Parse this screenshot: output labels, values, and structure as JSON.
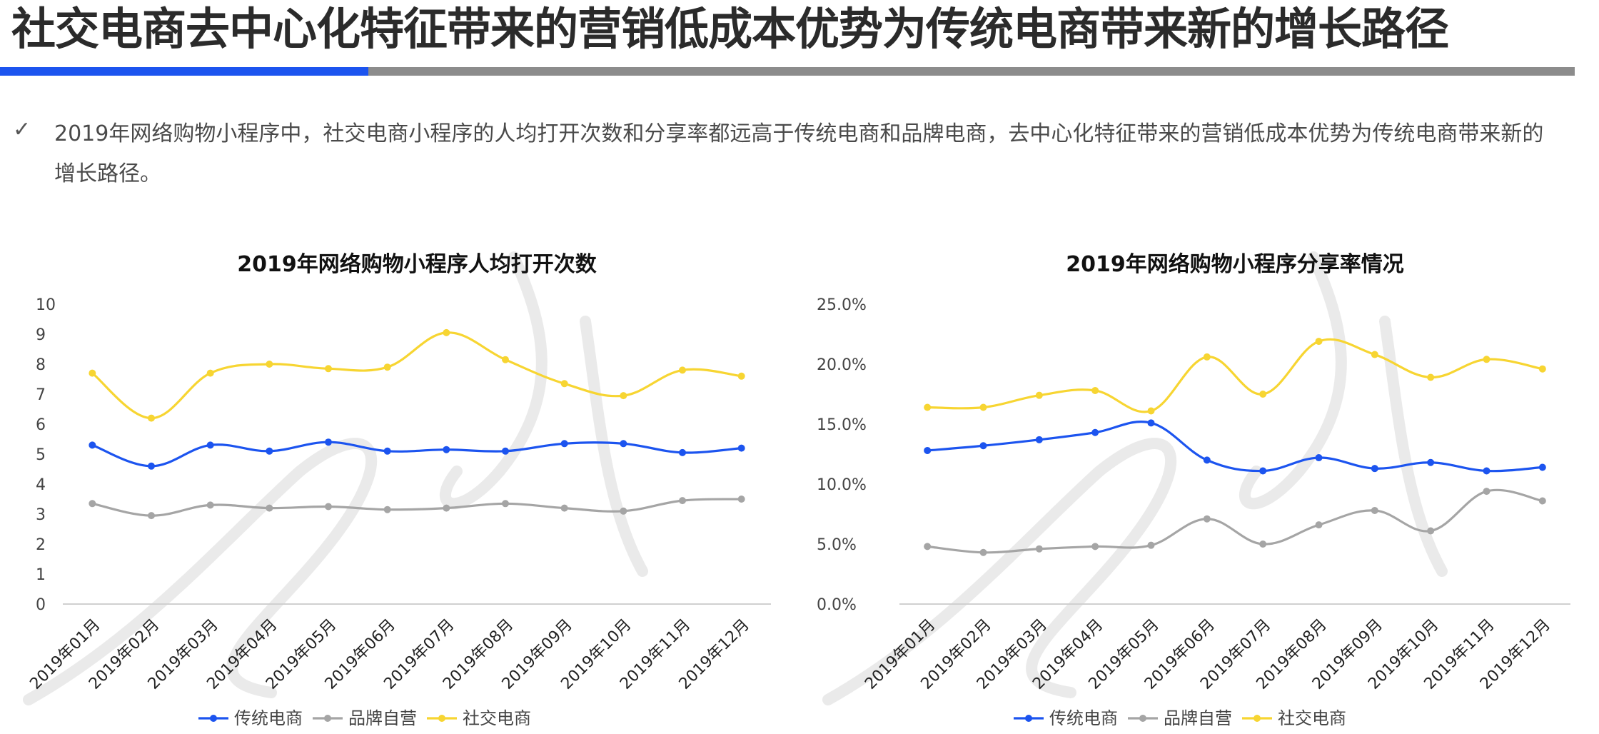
{
  "page": {
    "title": "社交电商去中心化特征带来的营销低成本优势为传统电商带来新的增长路径",
    "bullet": "✓",
    "summary": "2019年网络购物小程序中，社交电商小程序的人均打开次数和分享率都远高于传统电商和品牌电商，去中心化特征带来的营销低成本优势为传统电商带来新的增长路径。",
    "accent_color": "#1c54ef",
    "rule_color": "#8c8c8c"
  },
  "chart_data": [
    {
      "type": "line",
      "title": "2019年网络购物小程序人均打开次数",
      "categories": [
        "2019年01月",
        "2019年02月",
        "2019年03月",
        "2019年04月",
        "2019年05月",
        "2019年06月",
        "2019年07月",
        "2019年08月",
        "2019年09月",
        "2019年10月",
        "2019年11月",
        "2019年12月"
      ],
      "yticks": [
        "0",
        "1",
        "2",
        "3",
        "4",
        "5",
        "6",
        "7",
        "8",
        "9",
        "10"
      ],
      "ylim": [
        0,
        10
      ],
      "legend_position": "bottom",
      "grid": false,
      "series": [
        {
          "name": "传统电商",
          "color": "#1c54ef",
          "values": [
            5.3,
            4.6,
            5.3,
            5.1,
            5.4,
            5.1,
            5.15,
            5.1,
            5.35,
            5.35,
            5.05,
            5.2
          ]
        },
        {
          "name": "品牌自营",
          "color": "#a5a5a5",
          "values": [
            3.35,
            2.95,
            3.3,
            3.2,
            3.25,
            3.15,
            3.2,
            3.35,
            3.2,
            3.1,
            3.45,
            3.5
          ]
        },
        {
          "name": "社交电商",
          "color": "#f7d532",
          "values": [
            7.7,
            6.2,
            7.7,
            8.0,
            7.85,
            7.9,
            9.05,
            8.15,
            7.35,
            6.95,
            7.8,
            7.6
          ]
        }
      ]
    },
    {
      "type": "line",
      "title": "2019年网络购物小程序分享率情况",
      "categories": [
        "2019年01月",
        "2019年02月",
        "2019年03月",
        "2019年04月",
        "2019年05月",
        "2019年06月",
        "2019年07月",
        "2019年08月",
        "2019年09月",
        "2019年10月",
        "2019年11月",
        "2019年12月"
      ],
      "yticks": [
        "0.0%",
        "5.0%",
        "10.0%",
        "15.0%",
        "20.0%",
        "25.0%"
      ],
      "ylim": [
        0,
        25
      ],
      "unit": "%",
      "legend_position": "bottom",
      "grid": false,
      "series": [
        {
          "name": "传统电商",
          "color": "#1c54ef",
          "values": [
            12.8,
            13.2,
            13.7,
            14.3,
            15.1,
            12.0,
            11.1,
            12.2,
            11.3,
            11.8,
            11.1,
            11.4
          ]
        },
        {
          "name": "品牌自营",
          "color": "#a5a5a5",
          "values": [
            4.8,
            4.3,
            4.6,
            4.8,
            4.9,
            7.1,
            5.0,
            6.6,
            7.8,
            6.1,
            9.4,
            8.6
          ]
        },
        {
          "name": "社交电商",
          "color": "#f7d532",
          "values": [
            16.4,
            16.4,
            17.4,
            17.8,
            16.1,
            20.6,
            17.5,
            21.9,
            20.8,
            18.9,
            20.4,
            19.6
          ]
        }
      ]
    }
  ]
}
